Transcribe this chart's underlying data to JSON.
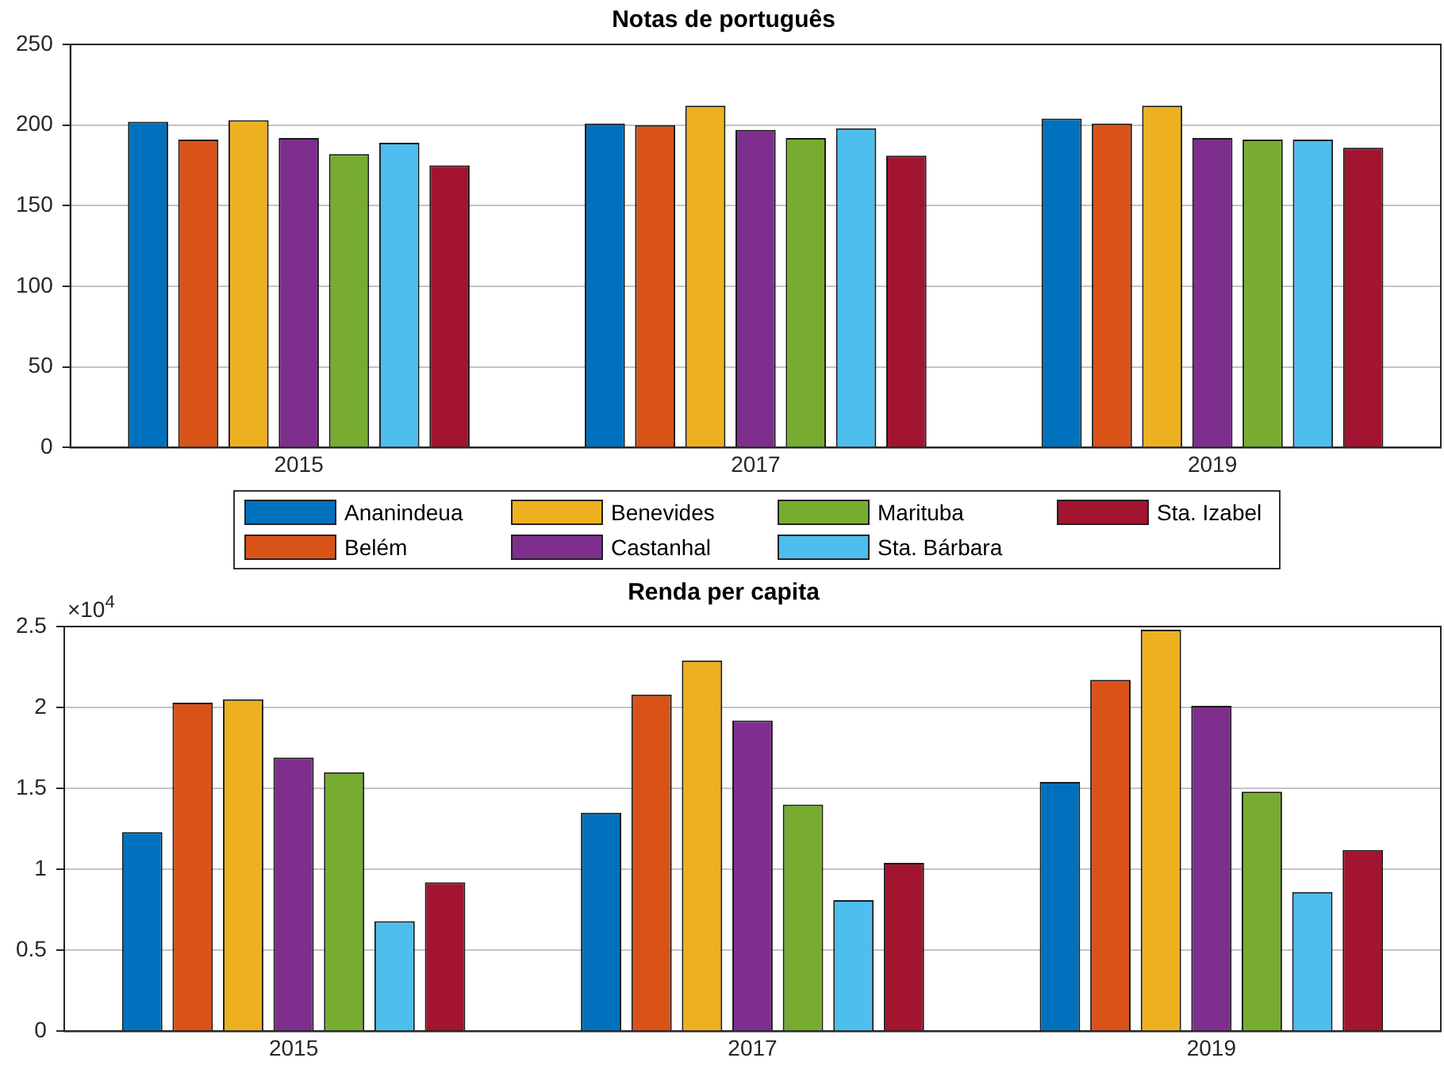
{
  "chart_data": [
    {
      "type": "bar",
      "title": "Notas de português",
      "categories": [
        "2015",
        "2017",
        "2019"
      ],
      "series": [
        {
          "name": "Ananindeua",
          "color": "#0072bd",
          "values": [
            202,
            201,
            204
          ]
        },
        {
          "name": "Belém",
          "color": "#d95319",
          "values": [
            191,
            200,
            201
          ]
        },
        {
          "name": "Benevides",
          "color": "#edb120",
          "values": [
            203,
            212,
            212
          ]
        },
        {
          "name": "Castanhal",
          "color": "#7e2f8e",
          "values": [
            192,
            197,
            192
          ]
        },
        {
          "name": "Marituba",
          "color": "#77ac30",
          "values": [
            182,
            192,
            191
          ]
        },
        {
          "name": "Sta. Bárbara",
          "color": "#4dbeee",
          "values": [
            189,
            198,
            191
          ]
        },
        {
          "name": "Sta. Izabel",
          "color": "#a2142f",
          "values": [
            175,
            181,
            186
          ]
        }
      ],
      "ylim": [
        0,
        250
      ],
      "yticks": [
        0,
        50,
        100,
        150,
        200,
        250
      ],
      "grid": "y",
      "legend": "bottom"
    },
    {
      "type": "bar",
      "title": "Renda per capita",
      "categories": [
        "2015",
        "2017",
        "2019"
      ],
      "series": [
        {
          "color": "#0072bd",
          "values": [
            1.23,
            1.35,
            1.54
          ]
        },
        {
          "color": "#d95319",
          "values": [
            2.03,
            2.08,
            2.17
          ]
        },
        {
          "color": "#edb120",
          "values": [
            2.05,
            2.29,
            2.48
          ]
        },
        {
          "color": "#7e2f8e",
          "values": [
            1.69,
            1.92,
            2.01
          ]
        },
        {
          "color": "#77ac30",
          "values": [
            1.6,
            1.4,
            1.48
          ]
        },
        {
          "color": "#4dbeee",
          "values": [
            0.68,
            0.81,
            0.86
          ]
        },
        {
          "color": "#a2142f",
          "values": [
            0.92,
            1.04,
            1.12
          ]
        }
      ],
      "ylim": [
        0,
        2.5
      ],
      "yticks": [
        0,
        0.5,
        1,
        1.5,
        2,
        2.5
      ],
      "grid": "y",
      "annotations": [
        "×10$^{4}$"
      ]
    }
  ]
}
